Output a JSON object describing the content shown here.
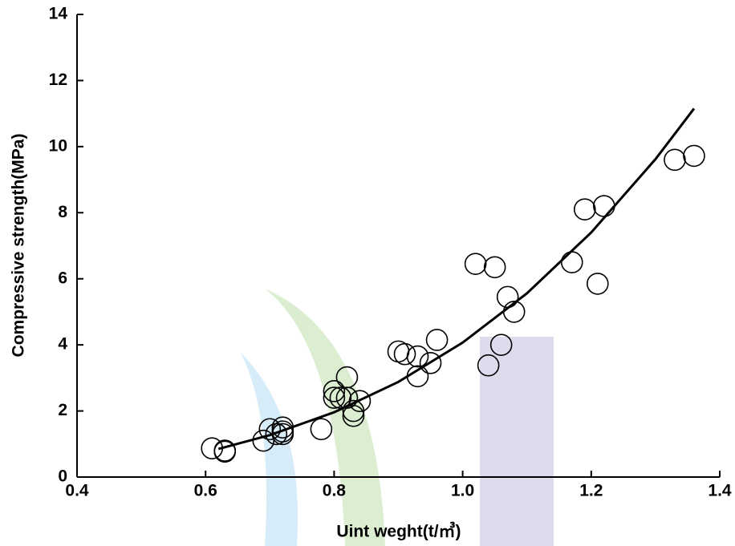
{
  "chart_data": {
    "type": "scatter",
    "x_label": "Uint weght(t/㎥)",
    "y_label": "Compressive strength(MPa)",
    "xlim": [
      0.4,
      1.4
    ],
    "ylim": [
      0,
      14
    ],
    "xticks": [
      0.4,
      0.6,
      0.8,
      {
        "value": 1,
        "label": "1.0"
      },
      1.2,
      1.4
    ],
    "yticks": [
      0,
      2,
      4,
      6,
      8,
      10,
      12,
      14
    ],
    "grid": false,
    "series": [
      {
        "type": "scatter",
        "color": "#000000",
        "x": [
          0.61,
          0.63,
          0.63,
          0.69,
          0.7,
          0.71,
          0.72,
          0.72,
          0.72,
          0.78,
          0.8,
          0.8,
          0.81,
          0.82,
          0.82,
          0.83,
          0.83,
          0.84,
          0.9,
          0.91,
          0.93,
          0.93,
          0.95,
          0.96,
          1.02,
          1.04,
          1.05,
          1.06,
          1.07,
          1.08,
          1.17,
          1.19,
          1.21,
          1.22,
          1.33,
          1.36
        ],
        "values": [
          0.87,
          0.8,
          0.77,
          1.1,
          1.45,
          1.3,
          1.5,
          1.3,
          1.38,
          1.45,
          2.6,
          2.4,
          2.4,
          3.02,
          2.4,
          2.0,
          1.85,
          2.3,
          3.8,
          3.72,
          3.65,
          3.05,
          3.45,
          4.15,
          6.45,
          3.38,
          6.35,
          4.0,
          5.45,
          5.0,
          6.5,
          8.1,
          5.85,
          8.2,
          9.6,
          9.72
        ]
      },
      {
        "type": "line",
        "color": "#000000",
        "x": [
          0.62,
          0.7,
          0.8,
          0.9,
          1.0,
          1.1,
          1.2,
          1.3,
          1.36
        ],
        "values": [
          0.85,
          1.27,
          1.96,
          2.88,
          4.07,
          5.56,
          7.4,
          9.62,
          11.15
        ]
      }
    ]
  }
}
